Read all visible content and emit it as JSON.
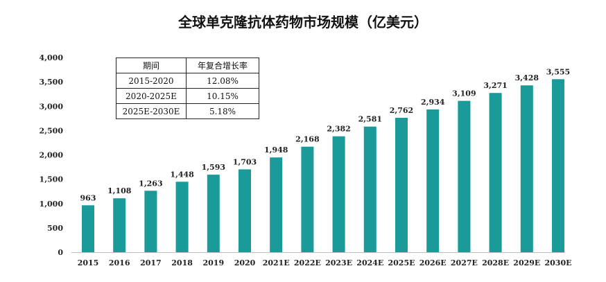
{
  "title": "全球单克隆抗体药物市场规模（亿美元）",
  "colors": {
    "bar": "#1a9b9a"
  },
  "cagr_table": {
    "headers": [
      "期间",
      "年复合增长率"
    ],
    "rows": [
      [
        "2015-2020",
        "12.08%"
      ],
      [
        "2020-2025E",
        "10.15%"
      ],
      [
        "2025E-2030E",
        "5.18%"
      ]
    ]
  },
  "chart_data": {
    "type": "bar",
    "title": "全球单克隆抗体药物市场规模（亿美元）",
    "categories": [
      "2015",
      "2016",
      "2017",
      "2018",
      "2019",
      "2020",
      "2021E",
      "2022E",
      "2023E",
      "2024E",
      "2025E",
      "2026E",
      "2027E",
      "2028E",
      "2029E",
      "2030E"
    ],
    "values": [
      963,
      1108,
      1263,
      1448,
      1593,
      1703,
      1948,
      2168,
      2382,
      2581,
      2762,
      2934,
      3109,
      3271,
      3428,
      3555
    ],
    "value_labels": [
      "963",
      "1,108",
      "1,263",
      "1,448",
      "1,593",
      "1,703",
      "1,948",
      "2,168",
      "2,382",
      "2,581",
      "2,762",
      "2,934",
      "3,109",
      "3,271",
      "3,428",
      "3,555"
    ],
    "yticks": [
      0,
      500,
      1000,
      1500,
      2000,
      2500,
      3000,
      3500,
      4000
    ],
    "ytick_labels": [
      "0",
      "500",
      "1,000",
      "1,500",
      "2,000",
      "2,500",
      "3,000",
      "3,500",
      "4,000"
    ],
    "ylim": [
      0,
      4000
    ],
    "xlabel": "",
    "ylabel": "",
    "grid": false,
    "legend": "none"
  }
}
